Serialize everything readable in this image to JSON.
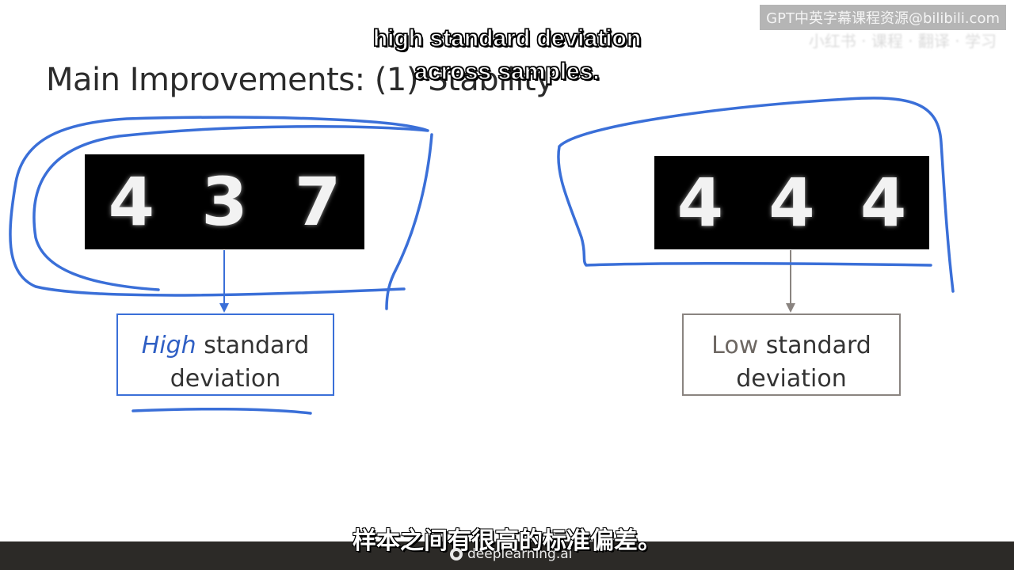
{
  "slide": {
    "title": "Main Improvements: (1) Stability"
  },
  "watermark": {
    "text": "GPT中英字幕课程资源@bilibili.com",
    "ghost": "小红书 · 课程 · 翻译 · 学习"
  },
  "subtitles": {
    "en_line1": "high standard deviation",
    "en_line2": "across samples.",
    "zh": "样本之间有很高的标准偏差。"
  },
  "left_panel": {
    "digits": [
      "4",
      "3",
      "7"
    ],
    "label_emphasis": "High",
    "label_rest": " standard",
    "label_line2": "deviation",
    "accent_color": "#3a6fd8"
  },
  "right_panel": {
    "digits": [
      "4",
      "4",
      "4"
    ],
    "label_emphasis": "Low",
    "label_rest": " standard",
    "label_line2": "deviation",
    "accent_color": "#8a8480"
  },
  "footer": {
    "brand": "deeplearning.ai",
    "logo_icon": "deeplearning-logo-icon"
  },
  "colors": {
    "pen": "#3a6fd8",
    "bar": "#2c2a27"
  }
}
